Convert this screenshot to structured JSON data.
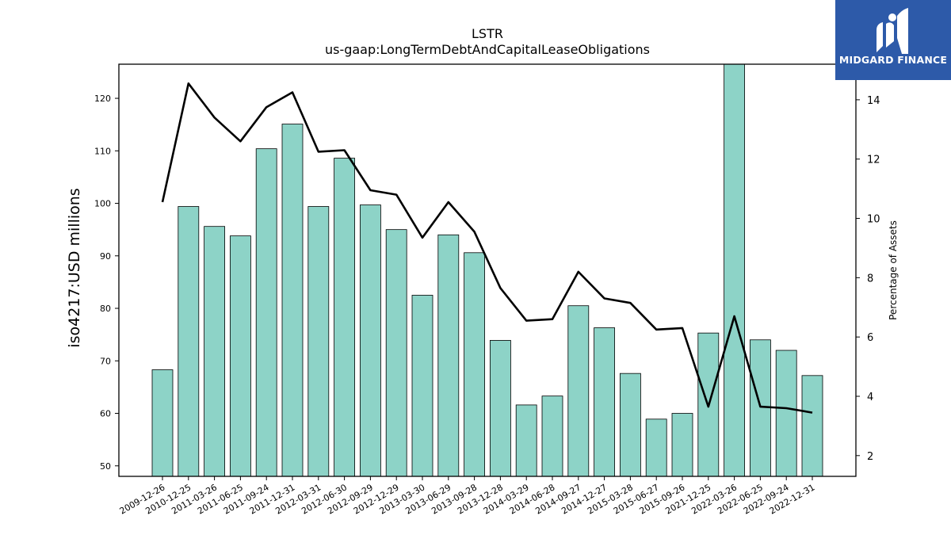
{
  "chart_data": {
    "type": "bar",
    "title": "LSTR",
    "subtitle": "us-gaap:LongTermDebtAndCapitalLeaseObligations",
    "ylabel": "iso4217:USD  millions",
    "y2label": "Percentage of Assets",
    "ylim": [
      48,
      126.5
    ],
    "y2lim": [
      1.3,
      15.2
    ],
    "yticks": [
      50,
      60,
      70,
      80,
      90,
      100,
      110,
      120
    ],
    "y2ticks": [
      2,
      4,
      6,
      8,
      10,
      12,
      14
    ],
    "categories": [
      "2009-12-26",
      "2010-12-25",
      "2011-03-26",
      "2011-06-25",
      "2011-09-24",
      "2011-12-31",
      "2012-03-31",
      "2012-06-30",
      "2012-09-29",
      "2012-12-29",
      "2013-03-30",
      "2013-06-29",
      "2013-09-28",
      "2013-12-28",
      "2014-03-29",
      "2014-06-28",
      "2014-09-27",
      "2014-12-27",
      "2015-03-28",
      "2015-06-27",
      "2015-09-26",
      "2021-12-25",
      "2022-03-26",
      "2022-06-25",
      "2022-09-24",
      "2022-12-31"
    ],
    "series": [
      {
        "type": "bar",
        "axis": "left",
        "color": "#8dd3c7",
        "values": [
          68.3,
          99.4,
          95.6,
          93.8,
          110.4,
          115.1,
          99.4,
          108.6,
          99.7,
          95.0,
          82.5,
          94.0,
          90.6,
          73.9,
          61.6,
          63.3,
          80.5,
          76.3,
          67.6,
          58.9,
          60.0,
          75.3,
          126.5,
          74.0,
          72.0,
          67.2
        ]
      },
      {
        "type": "line",
        "axis": "right",
        "color": "#000000",
        "values": [
          10.55,
          14.55,
          13.4,
          12.6,
          13.75,
          14.25,
          12.25,
          12.3,
          10.95,
          10.8,
          9.35,
          10.55,
          9.55,
          7.65,
          6.55,
          6.6,
          8.2,
          7.3,
          7.15,
          6.25,
          6.3,
          3.65,
          6.7,
          3.65,
          3.6,
          3.45
        ]
      }
    ],
    "grid": false
  },
  "logo": {
    "text": "MIDGARD FINANCE",
    "bg_color": "#2d5aa9",
    "icon": "midgard-logo-icon"
  }
}
